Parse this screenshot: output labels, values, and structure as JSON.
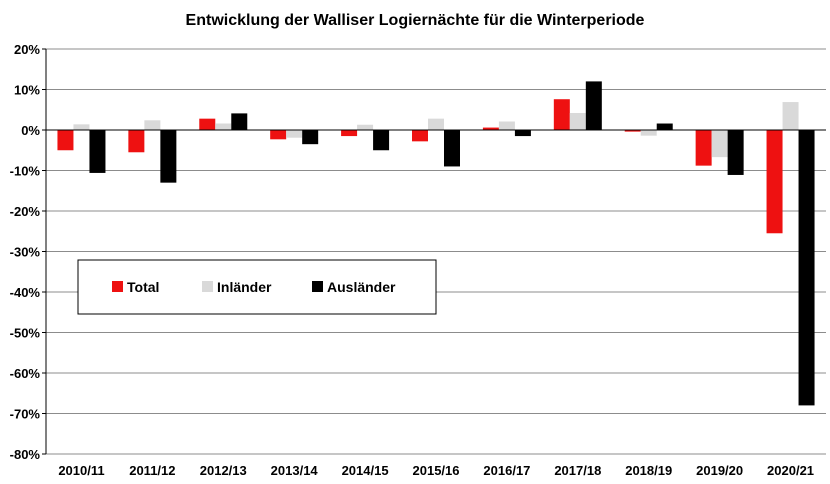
{
  "chart_data": {
    "type": "bar",
    "title": "Entwicklung der Walliser Logiernächte für die Winterperiode",
    "xlabel": "",
    "ylabel": "",
    "ylim": [
      -80,
      20
    ],
    "y_ticks": [
      20,
      10,
      0,
      -10,
      -20,
      -30,
      -40,
      -50,
      -60,
      -70,
      -80
    ],
    "y_tick_labels": [
      "20%",
      "10%",
      "0%",
      "-10%",
      "-20%",
      "-30%",
      "-40%",
      "-50%",
      "-60%",
      "-70%",
      "-80%"
    ],
    "grid": true,
    "legend_position": "left-middle",
    "categories": [
      "2010/11",
      "2011/12",
      "2012/13",
      "2013/14",
      "2014/15",
      "2015/16",
      "2016/17",
      "2017/18",
      "2018/19",
      "2019/20",
      "2020/21"
    ],
    "series": [
      {
        "name": "Total",
        "color": "#ee1111",
        "values": [
          -5.0,
          -5.5,
          2.8,
          -2.3,
          -1.5,
          -2.8,
          0.6,
          7.6,
          -0.4,
          -8.8,
          -25.5
        ]
      },
      {
        "name": "Inländer",
        "color": "#d9d9d9",
        "values": [
          1.4,
          2.4,
          1.6,
          -1.9,
          1.3,
          2.8,
          2.1,
          4.2,
          -1.4,
          -6.7,
          6.9
        ]
      },
      {
        "name": "Ausländer",
        "color": "#000000",
        "values": [
          -10.6,
          -13.0,
          4.1,
          -3.5,
          -5.0,
          -9.0,
          -1.5,
          12.0,
          1.6,
          -11.1,
          -68.0
        ]
      }
    ]
  }
}
